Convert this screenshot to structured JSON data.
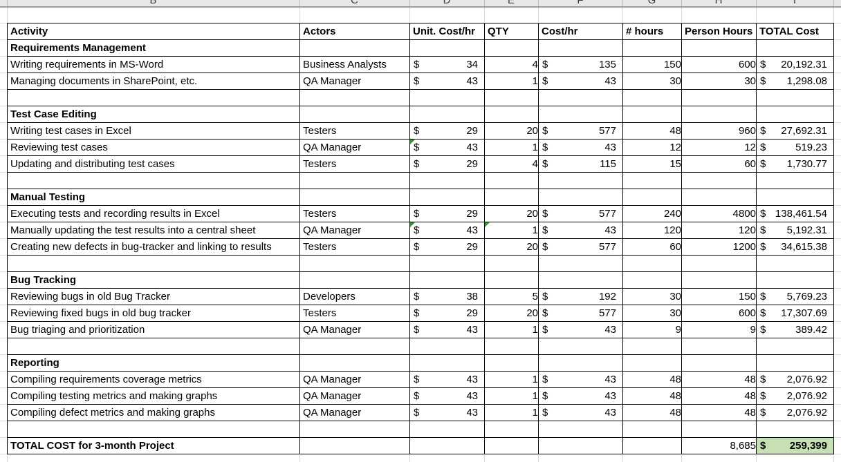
{
  "sheet": {
    "column_letters": [
      "B",
      "C",
      "D",
      "E",
      "F",
      "G",
      "H",
      "I"
    ],
    "currency_symbol": "$",
    "columns": [
      "Activity",
      "Actors",
      "Unit. Cost/hr",
      "QTY",
      "Cost/hr",
      "# hours",
      "Person Hours",
      "TOTAL Cost"
    ],
    "sections": [
      {
        "title": "Requirements Management",
        "rows": [
          {
            "activity": "Writing requirements in MS-Word",
            "actor": "Business Analysts",
            "unit_cost": "34",
            "qty": "4",
            "cost_hr": "135",
            "hours": "150",
            "person_hours": "600",
            "total_cost": "20,192.31"
          },
          {
            "activity": "Managing documents in SharePoint, etc.",
            "actor": "QA Manager",
            "unit_cost": "43",
            "qty": "1",
            "cost_hr": "43",
            "hours": "30",
            "person_hours": "30",
            "total_cost": "1,298.08"
          }
        ]
      },
      {
        "title": "Test Case Editing",
        "rows": [
          {
            "activity": "Writing test cases in Excel",
            "actor": "Testers",
            "unit_cost": "29",
            "qty": "20",
            "cost_hr": "577",
            "hours": "48",
            "person_hours": "960",
            "total_cost": "27,692.31"
          },
          {
            "activity": "Reviewing test cases",
            "actor": "QA Manager",
            "unit_cost": "43",
            "qty": "1",
            "cost_hr": "43",
            "hours": "12",
            "person_hours": "12",
            "total_cost": "519.23",
            "flags": [
              "unit_cost"
            ]
          },
          {
            "activity": "Updating and distributing test cases",
            "actor": "Testers",
            "unit_cost": "29",
            "qty": "4",
            "cost_hr": "115",
            "hours": "15",
            "person_hours": "60",
            "total_cost": "1,730.77"
          }
        ]
      },
      {
        "title": "Manual Testing",
        "rows": [
          {
            "activity": "Executing tests and recording results in Excel",
            "actor": "Testers",
            "unit_cost": "29",
            "qty": "20",
            "cost_hr": "577",
            "hours": "240",
            "person_hours": "4800",
            "total_cost": "138,461.54"
          },
          {
            "activity": "Manually updating the test results into a central sheet",
            "actor": "QA Manager",
            "unit_cost": "43",
            "qty": "1",
            "cost_hr": "43",
            "hours": "120",
            "person_hours": "120",
            "total_cost": "5,192.31",
            "flags": [
              "unit_cost",
              "qty"
            ]
          },
          {
            "activity": "Creating new defects in bug-tracker and linking to results",
            "actor": "Testers",
            "unit_cost": "29",
            "qty": "20",
            "cost_hr": "577",
            "hours": "60",
            "person_hours": "1200",
            "total_cost": "34,615.38"
          }
        ]
      },
      {
        "title": "Bug Tracking",
        "rows": [
          {
            "activity": "Reviewing bugs in old Bug Tracker",
            "actor": "Developers",
            "unit_cost": "38",
            "qty": "5",
            "cost_hr": "192",
            "hours": "30",
            "person_hours": "150",
            "total_cost": "5,769.23"
          },
          {
            "activity": "Reviewing fixed bugs in old bug tracker",
            "actor": "Testers",
            "unit_cost": "29",
            "qty": "20",
            "cost_hr": "577",
            "hours": "30",
            "person_hours": "600",
            "total_cost": "17,307.69"
          },
          {
            "activity": "Bug triaging and prioritization",
            "actor": "QA Manager",
            "unit_cost": "43",
            "qty": "1",
            "cost_hr": "43",
            "hours": "9",
            "person_hours": "9",
            "total_cost": "389.42"
          }
        ]
      },
      {
        "title": "Reporting",
        "rows": [
          {
            "activity": "Compiling requirements coverage metrics",
            "actor": "QA Manager",
            "unit_cost": "43",
            "qty": "1",
            "cost_hr": "43",
            "hours": "48",
            "person_hours": "48",
            "total_cost": "2,076.92"
          },
          {
            "activity": "Compiling testing metrics and making graphs",
            "actor": "QA Manager",
            "unit_cost": "43",
            "qty": "1",
            "cost_hr": "43",
            "hours": "48",
            "person_hours": "48",
            "total_cost": "2,076.92"
          },
          {
            "activity": "Compiling defect metrics and making graphs",
            "actor": "QA Manager",
            "unit_cost": "43",
            "qty": "1",
            "cost_hr": "43",
            "hours": "48",
            "person_hours": "48",
            "total_cost": "2,076.92"
          }
        ]
      }
    ],
    "total_row": {
      "label": "TOTAL COST for 3-month Project",
      "person_hours": "8,685",
      "total_cost": "259,399"
    },
    "colors": {
      "total_cell_bg": "#c6e0b4",
      "flag_green": "#2e9b2e",
      "header_fill": "#f2f2f2"
    }
  }
}
